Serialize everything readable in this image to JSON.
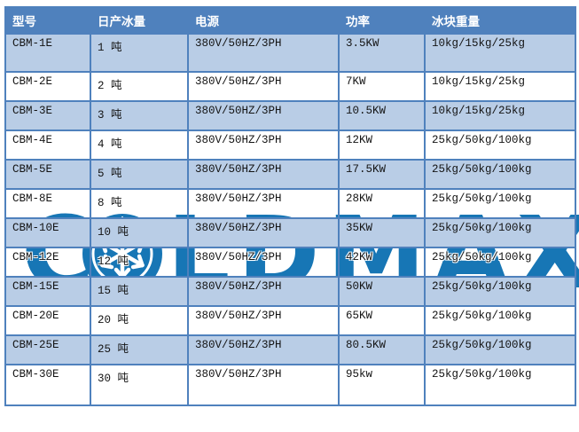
{
  "brand": {
    "watermark_text": "COLDMAX",
    "watermark_left": "C",
    "watermark_right": "LDMAX",
    "logo_icon": "snowflake-circle"
  },
  "colors": {
    "header_bg": "#4F81BD",
    "header_text": "#FFFFFF",
    "row_shaded_bg": "#B9CDE6",
    "row_plain_bg": "#FFFFFF",
    "grid_border": "#4F81BD",
    "watermark_blue": "#1776B5",
    "cell_text": "#141414"
  },
  "table": {
    "columns": [
      {
        "id": "model",
        "label": "型号"
      },
      {
        "id": "daily-ice",
        "label": "日产冰量"
      },
      {
        "id": "power-supply",
        "label": "电源"
      },
      {
        "id": "power",
        "label": "功率"
      },
      {
        "id": "ice-block-weight",
        "label": "冰块重量"
      }
    ],
    "rows": [
      {
        "model": "CBM-1E",
        "daily_ice": "1 吨",
        "power_supply": "380V/50HZ/3PH",
        "power": "3.5KW",
        "ice_weight": "10kg/15kg/25kg"
      },
      {
        "model": "CBM-2E",
        "daily_ice": "2 吨",
        "power_supply": "380V/50HZ/3PH",
        "power": "7KW",
        "ice_weight": "10kg/15kg/25kg"
      },
      {
        "model": "CBM-3E",
        "daily_ice": "3 吨",
        "power_supply": "380V/50HZ/3PH",
        "power": "10.5KW",
        "ice_weight": "10kg/15kg/25kg"
      },
      {
        "model": "CBM-4E",
        "daily_ice": "4 吨",
        "power_supply": "380V/50HZ/3PH",
        "power": "12KW",
        "ice_weight": "25kg/50kg/100kg"
      },
      {
        "model": "CBM-5E",
        "daily_ice": "5 吨",
        "power_supply": "380V/50HZ/3PH",
        "power": "17.5KW",
        "ice_weight": "25kg/50kg/100kg"
      },
      {
        "model": "CBM-8E",
        "daily_ice": "8 吨",
        "power_supply": "380V/50HZ/3PH",
        "power": "28KW",
        "ice_weight": "25kg/50kg/100kg"
      },
      {
        "model": "CBM-10E",
        "daily_ice": "10 吨",
        "power_supply": "380V/50HZ/3PH",
        "power": "35KW",
        "ice_weight": "25kg/50kg/100kg"
      },
      {
        "model": "CBM-12E",
        "daily_ice": "12 吨",
        "power_supply": "380V/50HZ/3PH",
        "power": "42KW",
        "ice_weight": "25kg/50kg/100kg"
      },
      {
        "model": "CBM-15E",
        "daily_ice": "15 吨",
        "power_supply": "380V/50HZ/3PH",
        "power": "50KW",
        "ice_weight": "25kg/50kg/100kg"
      },
      {
        "model": "CBM-20E",
        "daily_ice": "20 吨",
        "power_supply": "380V/50HZ/3PH",
        "power": "65KW",
        "ice_weight": "25kg/50kg/100kg"
      },
      {
        "model": "CBM-25E",
        "daily_ice": "25 吨",
        "power_supply": "380V/50HZ/3PH",
        "power": "80.5KW",
        "ice_weight": "25kg/50kg/100kg"
      },
      {
        "model": "CBM-30E",
        "daily_ice": "30 吨",
        "power_supply": "380V/50HZ/3PH",
        "power": "95kw",
        "ice_weight": "25kg/50kg/100kg"
      }
    ]
  }
}
